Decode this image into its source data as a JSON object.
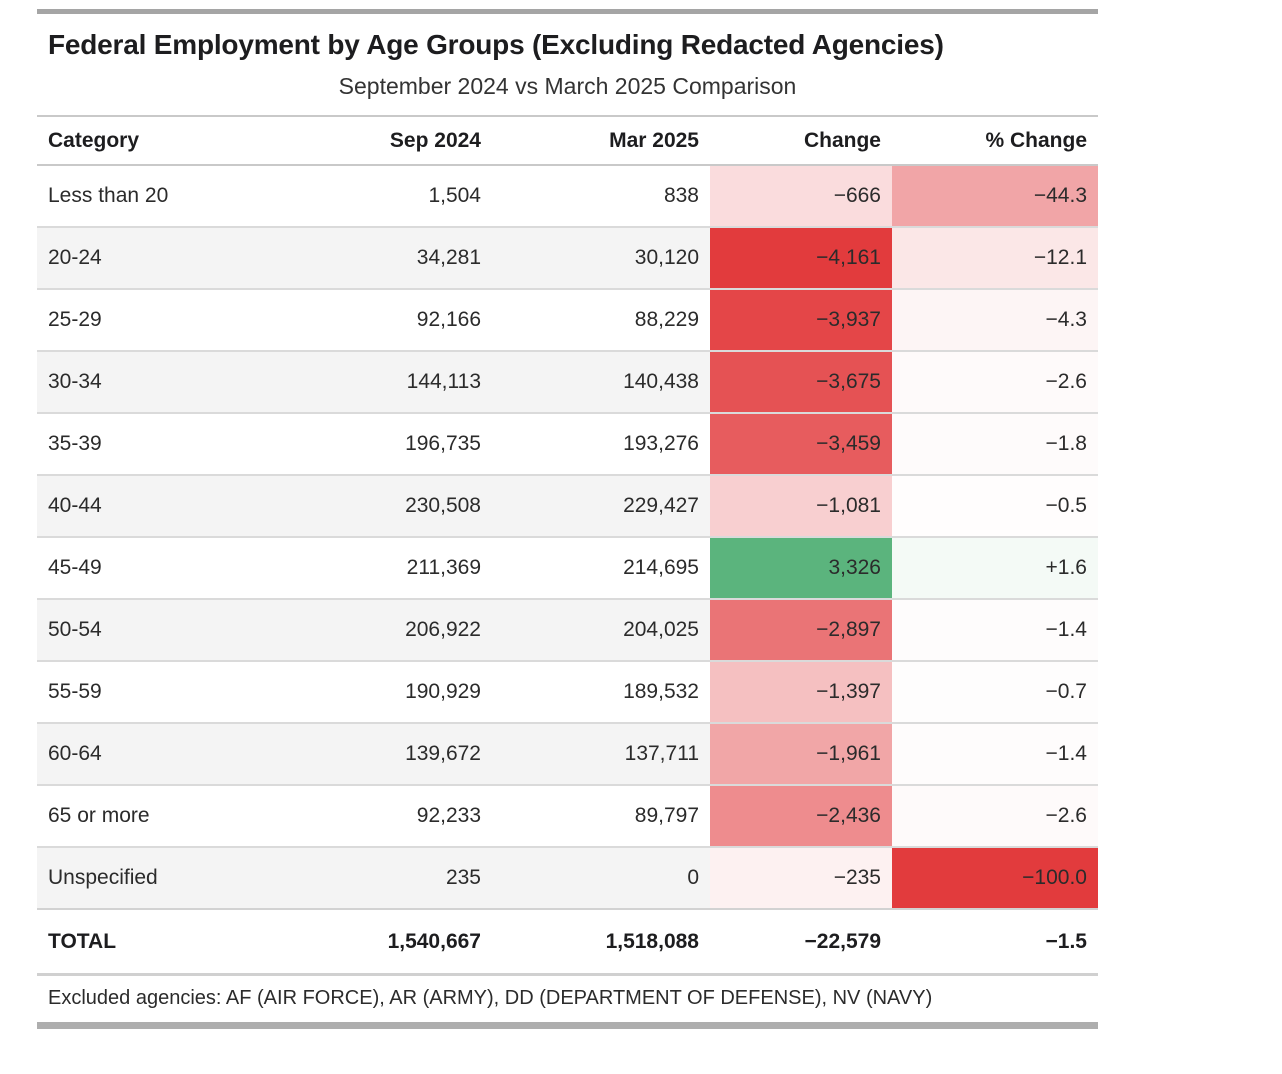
{
  "page": {
    "title": "Federal Employment by Age Groups (Excluding Redacted Agencies)",
    "subtitle": "September 2024 vs March 2025 Comparison"
  },
  "colors": {
    "negative_strong": "#e23b3d",
    "positive": "#5bb47d",
    "row_stripe": "#f4f4f4",
    "divider_dark": "#a5a5a5",
    "divider_light": "#dadada"
  },
  "table": {
    "columns": [
      "Category",
      "Sep 2024",
      "Mar 2025",
      "Change",
      "% Change"
    ],
    "rows": [
      {
        "category": "Less than 20",
        "sep_2024": "1,504",
        "mar_2025": "838",
        "change": "−666",
        "pct_change": "−44.3",
        "change_bg": "#fadcdd",
        "pct_bg": "#f1a5a7"
      },
      {
        "category": "20-24",
        "sep_2024": "34,281",
        "mar_2025": "30,120",
        "change": "−4,161",
        "pct_change": "−12.1",
        "change_bg": "#e23b3d",
        "pct_bg": "#fbe7e7"
      },
      {
        "category": "25-29",
        "sep_2024": "92,166",
        "mar_2025": "88,229",
        "change": "−3,937",
        "pct_change": "−4.3",
        "change_bg": "#e44648",
        "pct_bg": "#fdf5f5"
      },
      {
        "category": "30-34",
        "sep_2024": "144,113",
        "mar_2025": "140,438",
        "change": "−3,675",
        "pct_change": "−2.6",
        "change_bg": "#e55254",
        "pct_bg": "#fefafa"
      },
      {
        "category": "35-39",
        "sep_2024": "196,735",
        "mar_2025": "193,276",
        "change": "−3,459",
        "pct_change": "−1.8",
        "change_bg": "#e75c5e",
        "pct_bg": "#fefbfb"
      },
      {
        "category": "40-44",
        "sep_2024": "230,508",
        "mar_2025": "229,427",
        "change": "−1,081",
        "pct_change": "−0.5",
        "change_bg": "#f8cfd0",
        "pct_bg": "#fffdfd"
      },
      {
        "category": "45-49",
        "sep_2024": "211,369",
        "mar_2025": "214,695",
        "change": "3,326",
        "pct_change": "+1.6",
        "change_bg": "#5bb47d",
        "pct_bg": "#f4faf6"
      },
      {
        "category": "50-54",
        "sep_2024": "206,922",
        "mar_2025": "204,025",
        "change": "−2,897",
        "pct_change": "−1.4",
        "change_bg": "#ea7476",
        "pct_bg": "#fefcfc"
      },
      {
        "category": "55-59",
        "sep_2024": "190,929",
        "mar_2025": "189,532",
        "change": "−1,397",
        "pct_change": "−0.7",
        "change_bg": "#f5c0c1",
        "pct_bg": "#fefdfd"
      },
      {
        "category": "60-64",
        "sep_2024": "139,672",
        "mar_2025": "137,711",
        "change": "−1,961",
        "pct_change": "−1.4",
        "change_bg": "#f1a6a7",
        "pct_bg": "#fefcfc"
      },
      {
        "category": "65 or more",
        "sep_2024": "92,233",
        "mar_2025": "89,797",
        "change": "−2,436",
        "pct_change": "−2.6",
        "change_bg": "#ee8c8e",
        "pct_bg": "#fefafa"
      },
      {
        "category": "Unspecified",
        "sep_2024": "235",
        "mar_2025": "0",
        "change": "−235",
        "pct_change": "−100.0",
        "change_bg": "#fdf1f1",
        "pct_bg": "#e23b3d"
      }
    ],
    "total": {
      "category": "TOTAL",
      "sep_2024": "1,540,667",
      "mar_2025": "1,518,088",
      "change": "−22,579",
      "pct_change": "−1.5"
    },
    "footnote": "Excluded agencies: AF (AIR FORCE), AR (ARMY), DD (DEPARTMENT OF DEFENSE), NV (NAVY)"
  },
  "chart_data": {
    "type": "table",
    "title": "Federal Employment by Age Groups (Excluding Redacted Agencies)",
    "subtitle": "September 2024 vs March 2025 Comparison",
    "columns": [
      "Category",
      "Sep 2024",
      "Mar 2025",
      "Change",
      "% Change"
    ],
    "categories": [
      "Less than 20",
      "20-24",
      "25-29",
      "30-34",
      "35-39",
      "40-44",
      "45-49",
      "50-54",
      "55-59",
      "60-64",
      "65 or more",
      "Unspecified"
    ],
    "series": [
      {
        "name": "Sep 2024",
        "values": [
          1504,
          34281,
          92166,
          144113,
          196735,
          230508,
          211369,
          206922,
          190929,
          139672,
          92233,
          235
        ]
      },
      {
        "name": "Mar 2025",
        "values": [
          838,
          30120,
          88229,
          140438,
          193276,
          229427,
          214695,
          204025,
          189532,
          137711,
          89797,
          0
        ]
      },
      {
        "name": "Change",
        "values": [
          -666,
          -4161,
          -3937,
          -3675,
          -3459,
          -1081,
          3326,
          -2897,
          -1397,
          -1961,
          -2436,
          -235
        ]
      },
      {
        "name": "% Change",
        "values": [
          -44.3,
          -12.1,
          -4.3,
          -2.6,
          -1.8,
          -0.5,
          1.6,
          -1.4,
          -0.7,
          -1.4,
          -2.6,
          -100.0
        ]
      }
    ],
    "total": {
      "Sep 2024": 1540667,
      "Mar 2025": 1518088,
      "Change": -22579,
      "% Change": -1.5
    },
    "layout_hints": {
      "cell_shading": "Change and % Change cells shaded white→red for negative magnitude, green for positive",
      "zebra_striping": true
    },
    "footnote": "Excluded agencies: AF (AIR FORCE), AR (ARMY), DD (DEPARTMENT OF DEFENSE), NV (NAVY)"
  }
}
